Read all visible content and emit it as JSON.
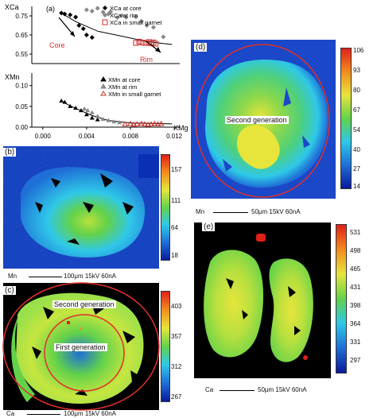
{
  "chart_data": [
    {
      "type": "scatter",
      "panel": "(a)",
      "sub": "XCa",
      "ylabel": "XCa",
      "xlim": [
        -0.001,
        0.0125
      ],
      "ylim": [
        0.5,
        0.8
      ],
      "yticks": [
        "0.75",
        "0.65",
        "0.55"
      ],
      "series": [
        {
          "name": "XCa at core",
          "points": [
            [
              0.0017,
              0.765
            ],
            [
              0.002,
              0.76
            ],
            [
              0.0025,
              0.755
            ],
            [
              0.003,
              0.744
            ],
            [
              0.0033,
              0.7
            ],
            [
              0.0037,
              0.683
            ],
            [
              0.004,
              0.65
            ],
            [
              0.0045,
              0.637
            ]
          ]
        },
        {
          "name": "XCa at rim",
          "points": [
            [
              0.004,
              0.782
            ],
            [
              0.0045,
              0.775
            ],
            [
              0.005,
              0.79
            ],
            [
              0.0055,
              0.77
            ],
            [
              0.006,
              0.76
            ],
            [
              0.0062,
              0.772
            ],
            [
              0.0068,
              0.741
            ],
            [
              0.0072,
              0.752
            ],
            [
              0.0076,
              0.742
            ],
            [
              0.0085,
              0.745
            ],
            [
              0.009,
              0.722
            ],
            [
              0.0095,
              0.7
            ],
            [
              0.0101,
              0.69
            ],
            [
              0.011,
              0.64
            ]
          ]
        },
        {
          "name": "XCa in small garnet",
          "points": [
            [
              0.0085,
              0.608
            ],
            [
              0.0088,
              0.615
            ],
            [
              0.0091,
              0.61
            ],
            [
              0.0094,
              0.608
            ],
            [
              0.0097,
              0.613
            ],
            [
              0.0099,
              0.606
            ],
            [
              0.0101,
              0.611
            ],
            [
              0.0103,
              0.604
            ]
          ]
        }
      ],
      "annotations": [
        "Core",
        "Rim"
      ]
    },
    {
      "type": "scatter",
      "sub": "XMn",
      "ylabel": "XMn",
      "xlabel": "XMg",
      "xlim": [
        -0.001,
        0.0125
      ],
      "ylim": [
        0.0,
        0.13
      ],
      "yticks": [
        "0.10",
        "0.05",
        "0.00"
      ],
      "xticks": [
        "0.000",
        "0.004",
        "0.008",
        "0.012"
      ],
      "series": [
        {
          "name": "XMn at core",
          "points": [
            [
              0.0017,
              0.063
            ],
            [
              0.002,
              0.06
            ],
            [
              0.0025,
              0.05
            ],
            [
              0.003,
              0.046
            ],
            [
              0.0035,
              0.04
            ],
            [
              0.004,
              0.03
            ],
            [
              0.0045,
              0.022
            ],
            [
              0.005,
              0.018
            ]
          ]
        },
        {
          "name": "XMn at rim",
          "points": [
            [
              0.0038,
              0.044
            ],
            [
              0.0041,
              0.04
            ],
            [
              0.0045,
              0.035
            ],
            [
              0.005,
              0.026
            ],
            [
              0.0055,
              0.019
            ],
            [
              0.006,
              0.016
            ],
            [
              0.0065,
              0.013
            ],
            [
              0.007,
              0.011
            ]
          ]
        },
        {
          "name": "XMn in small garnet",
          "points": [
            [
              0.0075,
              0.007
            ],
            [
              0.008,
              0.008
            ],
            [
              0.0083,
              0.006
            ],
            [
              0.0086,
              0.007
            ],
            [
              0.009,
              0.008
            ],
            [
              0.0093,
              0.007
            ],
            [
              0.0096,
              0.006
            ],
            [
              0.0099,
              0.007
            ],
            [
              0.0102,
              0.008
            ],
            [
              0.0105,
              0.007
            ],
            [
              0.0108,
              0.008
            ]
          ]
        }
      ]
    }
  ],
  "maps": {
    "b": {
      "label": "(b)",
      "element": "Mn",
      "scalebar": "100μm  15kV 60nA",
      "colorbar": [
        "157",
        "111",
        "64",
        "18"
      ]
    },
    "c": {
      "label": "(c)",
      "element": "Ca",
      "scalebar": "100μm  15kV 60nA",
      "colorbar": [
        "403",
        "357",
        "312",
        "267"
      ],
      "annotations": [
        "Second generation",
        "First generation"
      ]
    },
    "d": {
      "label": "(d)",
      "element": "Mn",
      "scalebar": "50μm  15kV 60nA",
      "colorbar": [
        "106",
        "93",
        "80",
        "67",
        "54",
        "40",
        "27",
        "14"
      ],
      "annotations": [
        "Second generation"
      ]
    },
    "e": {
      "label": "(e)",
      "element": "Ca",
      "scalebar": "50μm  15kV 60nA",
      "colorbar": [
        "531",
        "498",
        "465",
        "431",
        "398",
        "364",
        "331",
        "297"
      ]
    }
  },
  "colors": {
    "rainbow": [
      "#0a1a9c",
      "#1f6fd6",
      "#2fc8e8",
      "#63d24a",
      "#e7e53c",
      "#f28c1e",
      "#e0201a"
    ],
    "circle": "#e0302a"
  }
}
